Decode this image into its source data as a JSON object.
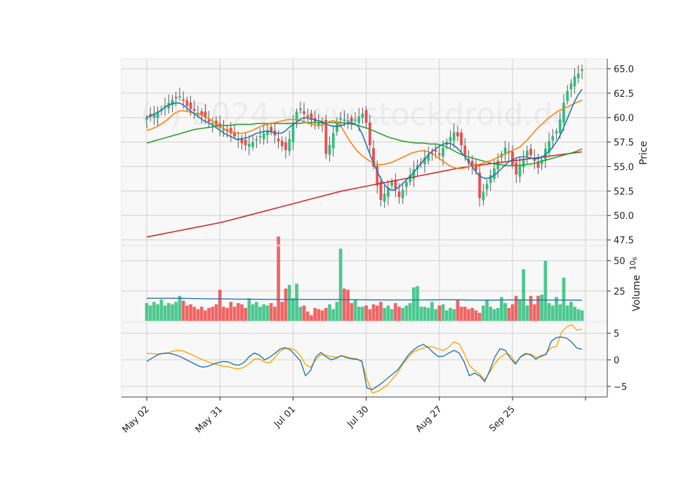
{
  "watermark": "(c) 2024 www.stockdroid.de",
  "colors": {
    "up": "#2ebf7c",
    "down": "#ef4b4b",
    "ma_short": "#1f77b4",
    "ma_mid": "#ff7f0e",
    "ma_long": "#2ca02c",
    "ma_200": "#d62728",
    "vol_ma": "#1f77b4",
    "macd": "#1f77b4",
    "signal": "#ffa500",
    "panel_bg": "#f8f8f8",
    "grid": "#d0d0d0"
  },
  "chart_data": {
    "type": "candlestick",
    "x_tick_labels": [
      "May 02",
      "May 31",
      "Jul 01",
      "Jul 30",
      "Aug 27",
      "Sep 25"
    ],
    "x_tick_index": [
      0,
      20,
      40,
      60,
      80,
      100
    ],
    "n_bars": 120,
    "price_panel": {
      "ylabel": "Price",
      "ylim": [
        47.0,
        66.0
      ],
      "yticks": [
        "47.5",
        "50.0",
        "52.5",
        "55.0",
        "57.5",
        "60.0",
        "62.5",
        "65.0"
      ],
      "ytick_values": [
        47.5,
        50.0,
        52.5,
        55.0,
        57.5,
        60.0,
        62.5,
        65.0
      ],
      "close": [
        60.0,
        60.1,
        60.3,
        60.5,
        60.8,
        61.2,
        61.5,
        61.8,
        62.0,
        62.2,
        61.8,
        61.2,
        60.9,
        60.7,
        60.5,
        60.3,
        60.0,
        59.6,
        59.4,
        59.2,
        59.0,
        58.9,
        58.6,
        58.4,
        58.1,
        57.8,
        57.4,
        57.2,
        57.3,
        57.5,
        57.8,
        58.1,
        58.4,
        58.7,
        58.6,
        58.2,
        57.6,
        57.1,
        56.7,
        57.8,
        59.5,
        60.6,
        60.9,
        60.4,
        60.1,
        59.8,
        59.6,
        59.5,
        59.4,
        56.3,
        57.2,
        58.4,
        59.6,
        59.9,
        59.8,
        59.7,
        59.6,
        59.8,
        60.1,
        60.4,
        59.5,
        57.2,
        55.0,
        53.1,
        51.6,
        52.2,
        52.8,
        53.4,
        52.7,
        51.9,
        52.6,
        53.4,
        54.1,
        54.7,
        55.1,
        55.4,
        55.9,
        56.2,
        56.4,
        56.6,
        56.2,
        56.9,
        57.5,
        58.0,
        58.5,
        58.1,
        57.2,
        56.1,
        55.4,
        55.0,
        54.6,
        51.8,
        52.4,
        53.2,
        54.1,
        54.8,
        55.6,
        56.3,
        56.9,
        56.4,
        55.1,
        54.2,
        55.2,
        55.8,
        56.6,
        56.2,
        55.6,
        54.9,
        55.7,
        56.8,
        57.6,
        58.1,
        58.6,
        59.8,
        61.5,
        62.7,
        63.5,
        64.2,
        64.5,
        64.9
      ],
      "ma_short": [
        60.0,
        60.2,
        60.4,
        60.6,
        60.9,
        61.2,
        61.4,
        61.5,
        61.5,
        61.3,
        60.9,
        60.6,
        60.3,
        60.0,
        59.7,
        59.5,
        59.3,
        59.0,
        58.7,
        58.4,
        58.2,
        58.0,
        57.8,
        57.8,
        57.9,
        58.0,
        58.2,
        58.4,
        58.5,
        58.6,
        58.6,
        58.5,
        58.4,
        58.4,
        58.6,
        59.0,
        59.3,
        59.6,
        59.9,
        60.0,
        59.9,
        59.8,
        59.7,
        59.6,
        59.4,
        59.2,
        59.1,
        59.1,
        59.2,
        59.4,
        59.5,
        59.4,
        59.1,
        58.3,
        57.2,
        56.1,
        55.1,
        54.2,
        53.4,
        52.9,
        52.6,
        52.6,
        52.9,
        53.3,
        53.7,
        54.1,
        54.6,
        55.1,
        55.6,
        56.1,
        56.5,
        56.8,
        57.1,
        57.3,
        57.4,
        57.3,
        57.0,
        56.6,
        56.1,
        55.6,
        55.0,
        54.4,
        54.0,
        53.8,
        53.8,
        54.0,
        54.3,
        54.7,
        55.1,
        55.5,
        55.7,
        55.9,
        56.0,
        56.0,
        55.9,
        55.8,
        55.8,
        55.9,
        56.2,
        56.6,
        57.1,
        57.7,
        58.5,
        59.5,
        60.5,
        61.5,
        62.3,
        62.9
      ],
      "ma_mid": [
        58.7,
        58.8,
        59.0,
        59.2,
        59.5,
        59.8,
        60.2,
        60.5,
        60.7,
        60.7,
        60.6,
        60.5,
        60.4,
        60.3,
        60.1,
        59.9,
        59.6,
        59.3,
        59.0,
        58.8,
        58.6,
        58.5,
        58.4,
        58.4,
        58.5,
        58.6,
        58.8,
        59.0,
        59.2,
        59.3,
        59.4,
        59.5,
        59.6,
        59.7,
        59.8,
        59.8,
        59.8,
        59.7,
        59.6,
        59.4,
        59.3,
        59.2,
        59.2,
        59.4,
        59.6,
        59.7,
        59.5,
        59.0,
        58.3,
        57.6,
        57.0,
        56.5,
        56.1,
        55.8,
        55.5,
        55.3,
        55.2,
        55.2,
        55.3,
        55.4,
        55.6,
        55.8,
        56.0,
        56.2,
        56.4,
        56.5,
        56.6,
        56.6,
        56.5,
        56.3,
        56.0,
        55.7,
        55.4,
        55.1,
        54.9,
        54.8,
        54.8,
        54.9,
        55.0,
        55.1,
        55.2,
        55.3,
        55.5,
        55.6,
        55.8,
        56.0,
        56.2,
        56.4,
        56.6,
        56.8,
        57.0,
        57.4,
        57.8,
        58.3,
        58.8,
        59.2,
        59.6,
        60.0,
        60.3,
        60.6,
        60.8,
        61.0,
        61.2,
        61.4,
        61.6,
        61.8
      ],
      "ma_long": [
        57.4,
        57.6,
        57.8,
        58.0,
        58.2,
        58.4,
        58.6,
        58.8,
        58.9,
        59.0,
        59.1,
        59.2,
        59.2,
        59.3,
        59.3,
        59.3,
        59.4,
        59.4,
        59.4,
        59.4,
        59.4,
        59.4,
        59.4,
        59.5,
        59.5,
        59.5,
        59.5,
        59.5,
        59.5,
        59.4,
        59.3,
        59.1,
        58.9,
        58.6,
        58.3,
        58.0,
        57.8,
        57.6,
        57.5,
        57.4,
        57.4,
        57.3,
        57.3,
        57.1,
        56.8,
        56.4,
        56.1,
        55.9,
        55.7,
        55.5,
        55.3,
        55.2,
        55.1,
        55.1,
        55.1,
        55.2,
        55.3,
        55.5,
        55.7,
        55.9,
        56.1,
        56.3,
        56.5,
        56.8
      ],
      "ma_200": [
        47.8,
        48.1,
        48.4,
        48.7,
        49.0,
        49.3,
        49.7,
        50.1,
        50.5,
        50.9,
        51.3,
        51.7,
        52.1,
        52.5,
        52.8,
        53.1,
        53.4,
        53.7,
        54.0,
        54.3,
        54.6,
        54.9,
        55.1,
        55.3,
        55.5,
        55.7,
        55.9,
        56.1,
        56.3,
        56.5
      ]
    },
    "volume_panel": {
      "ylabel": "Volume  10^6",
      "ylim": [
        0,
        62
      ],
      "yticks": [
        "25",
        "50"
      ],
      "ytick_values": [
        25,
        50
      ],
      "volume": [
        15,
        13,
        16,
        14,
        18,
        13,
        15,
        14,
        16,
        21,
        17,
        13,
        14,
        12,
        10,
        12,
        9,
        11,
        12,
        14,
        26,
        12,
        11,
        16,
        12,
        15,
        14,
        11,
        19,
        14,
        16,
        12,
        14,
        13,
        15,
        12,
        70,
        16,
        27,
        30,
        19,
        31,
        12,
        13,
        8,
        5,
        11,
        10,
        9,
        11,
        14,
        10,
        16,
        60,
        27,
        26,
        15,
        18,
        12,
        12,
        13,
        10,
        14,
        13,
        16,
        11,
        13,
        10,
        15,
        12,
        11,
        13,
        15,
        28,
        29,
        12,
        12,
        11,
        16,
        10,
        13,
        14,
        9,
        11,
        10,
        18,
        12,
        12,
        10,
        11,
        9,
        7,
        13,
        18,
        12,
        10,
        11,
        20,
        15,
        11,
        14,
        21,
        18,
        43,
        13,
        21,
        14,
        21,
        22,
        50,
        15,
        13,
        20,
        14,
        36,
        13,
        16,
        12,
        10,
        9
      ],
      "vol_ma": [
        19,
        19,
        19,
        18.8,
        18.6,
        18.5,
        18.3,
        18.2,
        18.1,
        18.0,
        18.0,
        18.0,
        18.0,
        17.9,
        17.8,
        17.7,
        17.6,
        17.6,
        17.6,
        17.7,
        17.8,
        17.7,
        17.5,
        17.5,
        17.6,
        17.6,
        17.5,
        17.5,
        17.5,
        17.4
      ]
    },
    "macd_panel": {
      "ylim": [
        -7,
        7
      ],
      "yticks": [
        "−5",
        "0",
        "5"
      ],
      "ytick_values": [
        -5,
        0,
        5
      ],
      "macd": [
        -0.3,
        0.3,
        0.9,
        1.2,
        1.3,
        1.1,
        0.8,
        0.4,
        -0.1,
        -0.6,
        -1.1,
        -1.4,
        -1.2,
        -0.8,
        -0.5,
        -0.3,
        -0.4,
        -0.9,
        -1.0,
        -0.5,
        0.6,
        1.3,
        0.9,
        0.0,
        0.5,
        1.2,
        2.0,
        2.3,
        1.9,
        0.9,
        -0.2,
        -3.0,
        -2.0,
        0.5,
        1.4,
        0.6,
        0.0,
        0.3,
        0.8,
        0.4,
        0.2,
        0.1,
        -0.2,
        -5.3,
        -5.6,
        -5.0,
        -4.3,
        -3.5,
        -2.7,
        -1.9,
        -0.6,
        0.8,
        1.8,
        2.5,
        2.9,
        2.3,
        1.3,
        0.6,
        0.7,
        1.3,
        1.8,
        1.3,
        -0.4,
        -3.0,
        -2.5,
        -3.0,
        -4.1,
        -2.0,
        0.6,
        2.1,
        1.8,
        0.3,
        -0.8,
        0.6,
        1.2,
        0.9,
        0.1,
        0.8,
        1.0,
        3.5,
        4.2,
        4.3,
        4.1,
        3.3,
        2.2,
        2.0
      ],
      "signal": [
        1.2,
        1.2,
        1.1,
        1.2,
        1.2,
        1.6,
        1.8,
        1.7,
        1.3,
        0.9,
        0.4,
        0.0,
        -0.4,
        -0.7,
        -1.0,
        -1.2,
        -1.3,
        -1.6,
        -1.7,
        -1.4,
        -0.7,
        0.1,
        0.2,
        -0.4,
        -0.6,
        0.4,
        1.6,
        2.1,
        2.2,
        1.8,
        0.8,
        -0.9,
        -1.4,
        0.0,
        1.0,
        0.9,
        0.6,
        0.5,
        0.7,
        0.6,
        0.3,
        0.2,
        -0.4,
        -3.6,
        -6.2,
        -6.0,
        -5.4,
        -4.7,
        -3.6,
        -2.4,
        -0.8,
        0.4,
        1.4,
        1.9,
        2.2,
        2.5,
        2.4,
        2.0,
        1.8,
        2.4,
        3.4,
        3.0,
        1.2,
        -1.0,
        -2.0,
        -2.6,
        -3.8,
        -2.3,
        -0.7,
        0.5,
        1.1,
        0.9,
        -0.6,
        0.5,
        1.0,
        1.1,
        0.5,
        0.5,
        1.2,
        2.3,
        2.5,
        5.2,
        6.2,
        6.6,
        5.6,
        5.8
      ]
    }
  }
}
